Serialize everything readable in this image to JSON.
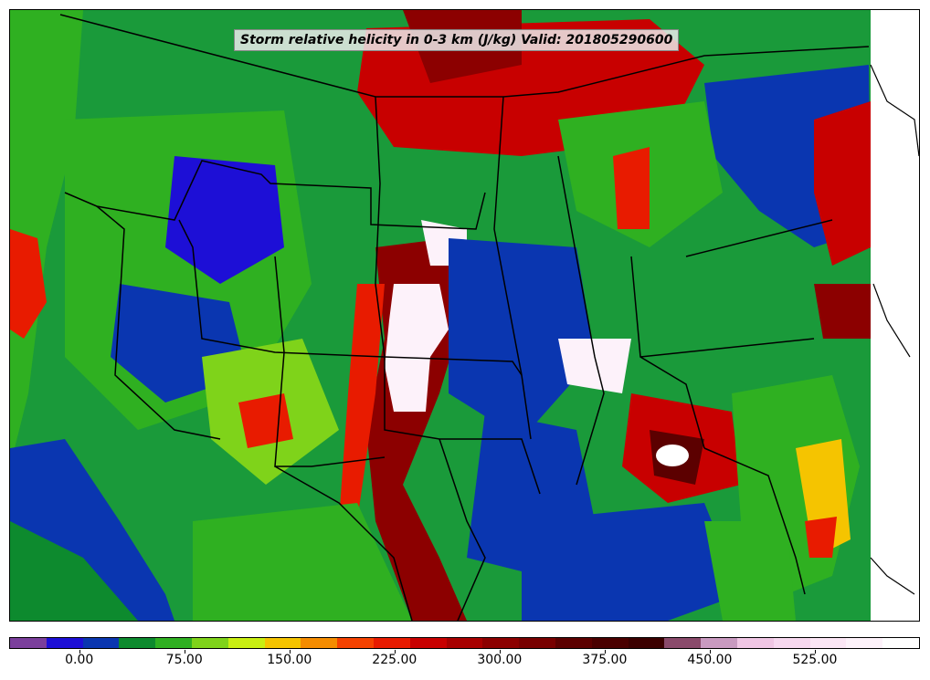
{
  "title": "Storm relative helicity in 0-3 km (J/kg) Valid: 201805290600",
  "colorbar": {
    "colors": [
      "#7b3f9c",
      "#1d0fd6",
      "#0a36b0",
      "#0d8a2e",
      "#2fb021",
      "#7fd31a",
      "#c9ef12",
      "#f5c400",
      "#f58c00",
      "#f54200",
      "#e81b00",
      "#c80000",
      "#a80000",
      "#8c0000",
      "#780000",
      "#5c0000",
      "#4a0000",
      "#3b0000",
      "#8a4a6b",
      "#c99ac0",
      "#f0c6e4",
      "#f7d8ef",
      "#fbe6f5",
      "#fdf2fa",
      "#ffffff"
    ],
    "tick_labels": [
      "0.00",
      "75.00",
      "150.00",
      "225.00",
      "300.00",
      "375.00",
      "450.00",
      "525.00"
    ],
    "tick_values": [
      0,
      75,
      150,
      225,
      300,
      375,
      450,
      525
    ],
    "range": [
      -50,
      600
    ]
  }
}
